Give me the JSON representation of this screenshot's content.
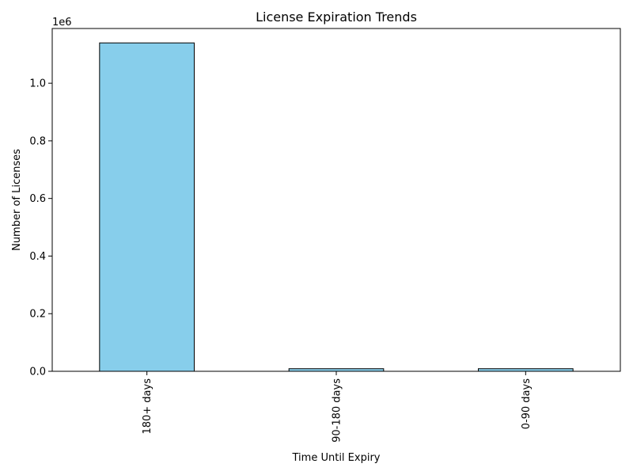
{
  "chart_data": {
    "type": "bar",
    "title": "License Expiration Trends",
    "xlabel": "Time Until Expiry",
    "ylabel": "Number of Licenses",
    "categories": [
      "180+ days",
      "90-180 days",
      "0-90 days"
    ],
    "values": [
      1140000,
      9000,
      9000
    ],
    "ylim": [
      0,
      1190000
    ],
    "y_ticks": [
      0,
      0.2,
      0.4,
      0.6,
      0.8,
      1.0
    ],
    "y_tick_labels": [
      "0.0",
      "0.2",
      "0.4",
      "0.6",
      "0.8",
      "1.0"
    ],
    "y_scale_label": "1e6",
    "grid": false,
    "bar_color": "#87ceeb",
    "bar_edge_color": "#000000",
    "x_tick_rotation": "vertical"
  }
}
